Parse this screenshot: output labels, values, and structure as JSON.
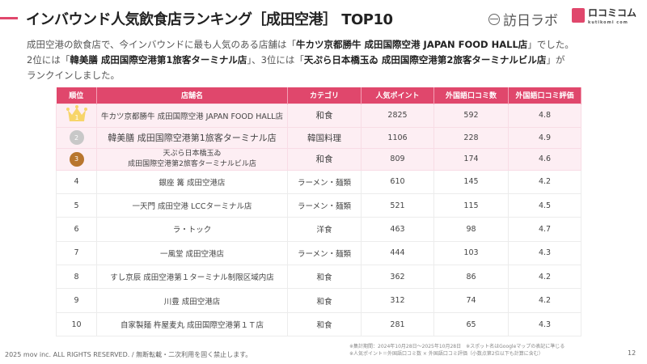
{
  "header": {
    "title": "インバウンド人気飲食店ランキング［成田空港］ TOP10",
    "logo_houjin": "訪日ラボ",
    "logo_kuchikomi": "ロコミコム",
    "logo_kuchikomi_sub": "kutikomi com"
  },
  "intro": {
    "p1_pre": "成田空港の飲食店で、今インバウンドに最も人気のある店舗は「",
    "p1_bold": "牛カツ京都勝牛 成田国際空港 JAPAN FOOD HALL店",
    "p1_post": "」でした。",
    "p2_pre": "2位には「",
    "p2_bold": "韓美膳 成田国際空港第1旅客ターミナル店",
    "p2_mid": "」、3位には「",
    "p2_bold2": "天ぷら日本橋玉ゐ 成田国際空港第2旅客ターミナルビル店",
    "p2_post": "」が",
    "p3": "ランクインしました。"
  },
  "table": {
    "headers": [
      "順位",
      "店舗名",
      "カテゴリ",
      "人気ポイント",
      "外国語口コミ数",
      "外国語口コミ評価"
    ],
    "rows": [
      {
        "rank": "1",
        "name": "牛カツ京都勝牛 成田国際空港 JAPAN FOOD HALL店",
        "category": "和食",
        "points": "2825",
        "reviews": "592",
        "rating": "4.8"
      },
      {
        "rank": "2",
        "name": "韓美膳 成田国際空港第1旅客ターミナル店",
        "category": "韓国料理",
        "points": "1106",
        "reviews": "228",
        "rating": "4.9"
      },
      {
        "rank": "3",
        "name_line1": "天ぷら日本橋玉ゐ",
        "name_line2": "成田国際空港第2旅客ターミナルビル店",
        "category": "和食",
        "points": "809",
        "reviews": "174",
        "rating": "4.6"
      },
      {
        "rank": "4",
        "name": "銀座 篝 成田空港店",
        "category": "ラーメン・麺類",
        "points": "610",
        "reviews": "145",
        "rating": "4.2"
      },
      {
        "rank": "5",
        "name": "一天門 成田空港 LCCターミナル店",
        "category": "ラーメン・麺類",
        "points": "521",
        "reviews": "115",
        "rating": "4.5"
      },
      {
        "rank": "6",
        "name": "ラ・トック",
        "category": "洋食",
        "points": "463",
        "reviews": "98",
        "rating": "4.7"
      },
      {
        "rank": "7",
        "name": "一風堂 成田空港店",
        "category": "ラーメン・麺類",
        "points": "444",
        "reviews": "103",
        "rating": "4.3"
      },
      {
        "rank": "8",
        "name": "すし京辰 成田空港第１ターミナル制限区域内店",
        "category": "和食",
        "points": "362",
        "reviews": "86",
        "rating": "4.2"
      },
      {
        "rank": "9",
        "name": "川豊 成田空港店",
        "category": "和食",
        "points": "312",
        "reviews": "74",
        "rating": "4.2"
      },
      {
        "rank": "10",
        "name": "自家製麺 杵屋麦丸 成田国際空港第１Ｔ店",
        "category": "和食",
        "points": "281",
        "reviews": "65",
        "rating": "4.3"
      }
    ],
    "medal_colors": {
      "gold": "#f7d56a",
      "silver": "#c8c8c8",
      "bronze": "#b8762e"
    }
  },
  "footer": {
    "copyright": "2025 mov inc. ALL RIGHTS RESERVED. / 無断転載・二次利用を固く禁止します。",
    "note1": "※集計期間：2024年10月28日〜2025年10月28日　※スポット名はGoogleマップの表記に準じる",
    "note2": "※人気ポイント＝外国語口コミ数 × 外国語口コミ評価（小数点第2位以下も計算に含む）",
    "page": "12"
  }
}
